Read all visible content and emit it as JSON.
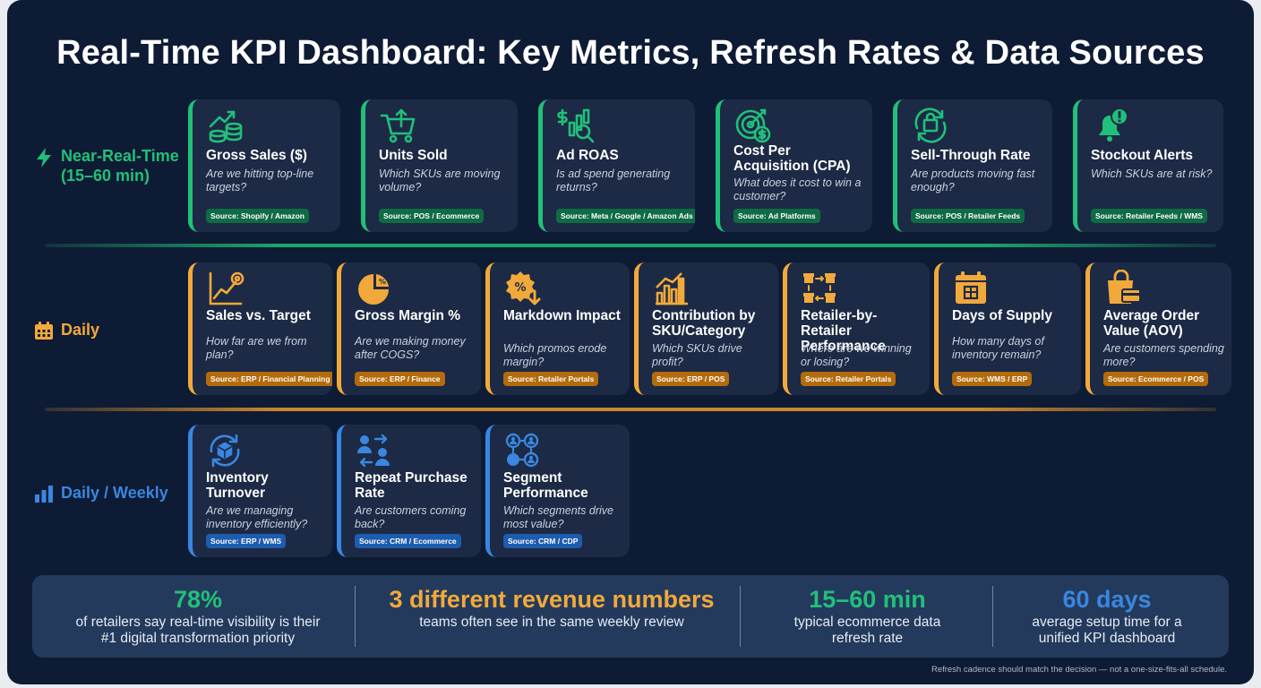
{
  "title": "Real-Time KPI Dashboard: Key Metrics, Refresh Rates & Data Sources",
  "colors": {
    "background": "#0e1b34",
    "card": "#1c2a45",
    "green": "#21c07a",
    "orange": "#f2a93b",
    "blue": "#3a86e0"
  },
  "rows": [
    {
      "label_line1": "Near-Real-Time",
      "label_line2": "(15–60 min)",
      "icon": "lightning-icon",
      "cards": [
        {
          "title": "Gross Sales ($)",
          "question": "Are we hitting top-line targets?",
          "source": "Source: Shopify / Amazon",
          "icon": "growth-coins-icon"
        },
        {
          "title": "Units Sold",
          "question": "Which SKUs are moving volume?",
          "source": "Source: POS / Ecommerce",
          "icon": "cart-icon"
        },
        {
          "title": "Ad ROAS",
          "question": "Is ad spend generating returns?",
          "source": "Source: Meta / Google / Amazon Ads",
          "icon": "chart-magnifier-icon"
        },
        {
          "title": "Cost Per Acquisition (CPA)",
          "question": "What does it cost to win a customer?",
          "source": "Source: Ad Platforms",
          "icon": "target-dollar-icon"
        },
        {
          "title": "Sell-Through Rate",
          "question": "Are products moving fast enough?",
          "source": "Source: POS / Retailer Feeds",
          "icon": "bag-cycle-icon"
        },
        {
          "title": "Stockout Alerts",
          "question": "Which SKUs are at risk?",
          "source": "Source: Retailer Feeds / WMS",
          "icon": "bell-alert-icon"
        }
      ]
    },
    {
      "label_line1": "Daily",
      "icon": "calendar-icon",
      "cards": [
        {
          "title": "Sales vs. Target",
          "question": "How far are we from plan?",
          "source": "Source: ERP / Financial Planning",
          "icon": "trend-target-icon"
        },
        {
          "title": "Gross Margin %",
          "question": "Are we making money after COGS?",
          "source": "Source: ERP / Finance",
          "icon": "pie-percent-icon"
        },
        {
          "title": "Markdown Impact",
          "question": "Which promos erode margin?",
          "source": "Source: Retailer Portals",
          "icon": "discount-badge-icon"
        },
        {
          "title": "Contribution by SKU/Category",
          "question": "Which SKUs drive profit?",
          "source": "Source: ERP / POS",
          "icon": "bar-chart-icon"
        },
        {
          "title": "Retailer-by-Retailer Performance",
          "question": "Where are we winning or losing?",
          "source": "Source: Retailer Portals",
          "icon": "stores-icon"
        },
        {
          "title": "Days of Supply",
          "question": "How many days of inventory remain?",
          "source": "Source: WMS / ERP",
          "icon": "calendar-box-icon"
        },
        {
          "title": "Average Order Value (AOV)",
          "question": "Are customers spending more?",
          "source": "Source: Ecommerce / POS",
          "icon": "bag-card-icon"
        }
      ]
    },
    {
      "label_line1": "Daily / Weekly",
      "icon": "bars-icon",
      "cards": [
        {
          "title": "Inventory Turnover",
          "question": "Are we managing inventory efficiently?",
          "source": "Source: ERP / WMS",
          "icon": "box-cycle-icon"
        },
        {
          "title": "Repeat Purchase Rate",
          "question": "Are customers coming back?",
          "source": "Source: CRM / Ecommerce",
          "icon": "people-repeat-icon"
        },
        {
          "title": "Segment Performance",
          "question": "Which segments drive most value?",
          "source": "Source: CRM / CDP",
          "icon": "segments-icon"
        }
      ]
    }
  ],
  "stats": [
    {
      "value": "78%",
      "text_line1": "of retailers say real-time visibility is their",
      "text_line2": "#1 digital transformation priority",
      "color": "#21c07a"
    },
    {
      "value": "3 different revenue numbers",
      "text_line1": "teams often see in the same weekly review",
      "text_line2": "",
      "color": "#f2a93b"
    },
    {
      "value": "15–60 min",
      "text_line1": "typical ecommerce data",
      "text_line2": "refresh rate",
      "color": "#21c07a"
    },
    {
      "value": "60 days",
      "text_line1": "average setup time for a",
      "text_line2": "unified KPI dashboard",
      "color": "#3a86e0"
    }
  ],
  "footnote": "Refresh cadence should match the decision — not a one-size-fits-all schedule."
}
